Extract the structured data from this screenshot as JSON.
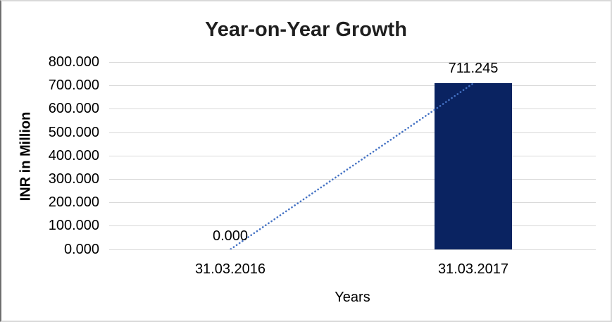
{
  "window": {
    "background": "#FFFFFF",
    "frame_border_color": "#D9D9D9",
    "frame_border_left_color": "#6E6E6E"
  },
  "chart_data": {
    "type": "bar",
    "title": "Year-on-Year Growth",
    "xlabel": "Years",
    "ylabel": "INR in Million",
    "categories": [
      "31.03.2016",
      "31.03.2017"
    ],
    "series": [
      {
        "name": "INR in Million",
        "values": [
          0.0,
          711.245
        ]
      }
    ],
    "data_labels": [
      "0.000",
      "711.245"
    ],
    "ylim": [
      0,
      800
    ],
    "ytick_step": 100,
    "ytick_labels": [
      "800.000",
      "700.000",
      "600.000",
      "500.000",
      "400.000",
      "300.000",
      "200.000",
      "100.000",
      "0.000"
    ],
    "grid": true,
    "legend_position": "none",
    "bar_color": "#0A2361",
    "gridline_color": "#D9D9D9",
    "text_color": "#000000",
    "title_color": "#1F1F1F",
    "trendline": {
      "type": "linear",
      "style": "dotted",
      "color": "#4472C4"
    }
  }
}
